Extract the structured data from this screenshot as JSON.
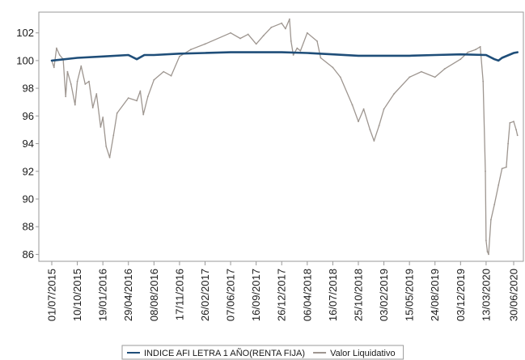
{
  "chart_data": {
    "type": "line",
    "y_ticks": [
      86,
      88,
      90,
      92,
      94,
      96,
      98,
      100,
      102
    ],
    "ylim": [
      85.5,
      103.5
    ],
    "grid": false,
    "legend_placement": "bottom-center",
    "x_tick_labels": [
      "01/07/2015",
      "10/10/2015",
      "19/01/2016",
      "29/04/2016",
      "08/08/2016",
      "17/11/2016",
      "26/02/2017",
      "07/06/2017",
      "16/09/2017",
      "26/12/2017",
      "06/04/2018",
      "16/07/2018",
      "25/10/2018",
      "03/02/2019",
      "15/05/2019",
      "24/08/2019",
      "03/12/2019",
      "13/03/2020",
      "30/06/2020"
    ],
    "series": [
      {
        "name": "INDICE AFI LETRA 1 AÑO(RENTA FIJA)",
        "color": "#1f4e79",
        "dates": [
          "01/07/2015",
          "10/10/2015",
          "19/01/2016",
          "29/04/2016",
          "01/06/2016",
          "01/07/2016",
          "08/08/2016",
          "17/11/2016",
          "26/02/2017",
          "07/06/2017",
          "16/09/2017",
          "26/12/2017",
          "06/04/2018",
          "16/07/2018",
          "25/10/2018",
          "03/02/2019",
          "15/05/2019",
          "24/08/2019",
          "03/12/2019",
          "13/03/2020",
          "15/04/2020",
          "01/05/2020",
          "15/05/2020",
          "30/06/2020",
          "15/07/2020"
        ],
        "values": [
          100.0,
          100.2,
          100.3,
          100.4,
          100.1,
          100.4,
          100.4,
          100.5,
          100.55,
          100.6,
          100.6,
          100.6,
          100.55,
          100.45,
          100.35,
          100.35,
          100.35,
          100.4,
          100.45,
          100.4,
          100.1,
          100.0,
          100.2,
          100.55,
          100.6
        ]
      },
      {
        "name": "Valor Liquidativo",
        "color": "#9e9690",
        "dates": [
          "01/07/2015",
          "10/07/2015",
          "20/07/2015",
          "01/08/2015",
          "15/08/2015",
          "25/08/2015",
          "01/09/2015",
          "15/09/2015",
          "01/10/2015",
          "10/10/2015",
          "25/10/2015",
          "10/11/2015",
          "25/11/2015",
          "10/12/2015",
          "25/12/2015",
          "10/01/2016",
          "19/01/2016",
          "01/02/2016",
          "15/02/2016",
          "01/03/2016",
          "15/03/2016",
          "29/04/2016",
          "01/06/2016",
          "15/06/2016",
          "27/06/2016",
          "15/07/2016",
          "08/08/2016",
          "15/09/2016",
          "15/10/2016",
          "17/11/2016",
          "01/01/2017",
          "26/02/2017",
          "07/06/2017",
          "15/07/2017",
          "15/08/2017",
          "16/09/2017",
          "15/10/2017",
          "15/11/2017",
          "26/12/2017",
          "10/01/2018",
          "26/01/2018",
          "01/02/2018",
          "10/02/2018",
          "25/02/2018",
          "10/03/2018",
          "06/04/2018",
          "15/05/2018",
          "29/05/2018",
          "16/07/2018",
          "15/08/2018",
          "01/10/2018",
          "25/10/2018",
          "15/11/2018",
          "10/12/2018",
          "26/12/2018",
          "15/01/2019",
          "03/02/2019",
          "15/03/2019",
          "15/05/2019",
          "01/07/2019",
          "24/08/2019",
          "01/10/2019",
          "03/12/2019",
          "01/01/2020",
          "01/02/2020",
          "19/02/2020",
          "01/03/2020",
          "10/03/2020",
          "13/03/2020",
          "18/03/2020",
          "23/03/2020",
          "01/04/2020",
          "15/04/2020",
          "01/05/2020",
          "15/05/2020",
          "01/06/2020",
          "08/06/2020",
          "15/06/2020",
          "30/06/2020",
          "10/07/2020",
          "15/07/2020"
        ],
        "values": [
          100.0,
          99.5,
          100.9,
          100.4,
          100.1,
          97.4,
          99.2,
          98.3,
          96.8,
          98.5,
          99.6,
          98.3,
          98.5,
          96.6,
          97.6,
          95.2,
          95.9,
          93.8,
          93.0,
          94.6,
          96.2,
          97.3,
          97.1,
          97.8,
          96.1,
          97.4,
          98.6,
          99.2,
          98.9,
          100.3,
          100.8,
          101.2,
          102.0,
          101.6,
          101.9,
          101.2,
          101.8,
          102.4,
          102.7,
          102.3,
          103.0,
          101.4,
          100.4,
          100.9,
          100.7,
          102.0,
          101.4,
          100.2,
          99.5,
          98.8,
          96.8,
          95.6,
          96.5,
          95.0,
          94.2,
          95.3,
          96.5,
          97.6,
          98.8,
          99.2,
          98.8,
          99.4,
          100.1,
          100.6,
          100.8,
          101.0,
          98.5,
          92.0,
          87.0,
          86.2,
          86.0,
          88.5,
          89.6,
          91.0,
          92.2,
          92.3,
          94.0,
          95.5,
          95.6,
          95.0,
          94.6
        ]
      }
    ]
  }
}
